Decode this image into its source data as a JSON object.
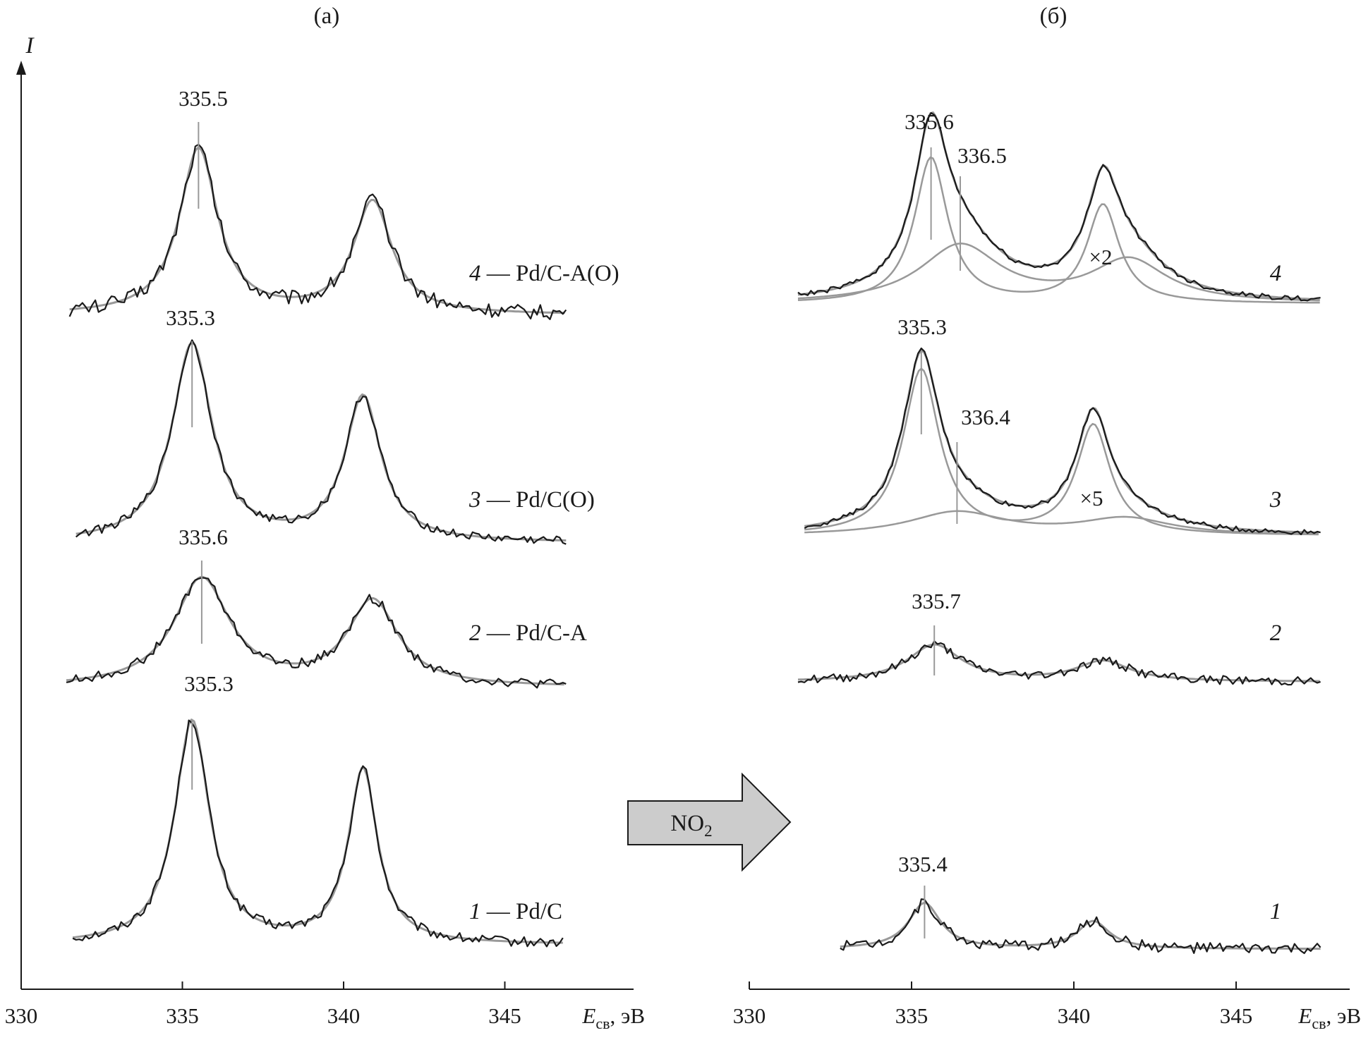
{
  "chart_data": [
    {
      "type": "line",
      "panel_label": "(а)",
      "y_axis_label": "I",
      "xlabel_main": "E",
      "xlabel_sub": "св",
      "xlabel_unit": ", эВ",
      "xlim": [
        330,
        349
      ],
      "ticks": [
        "330",
        "335",
        "340",
        "345"
      ],
      "series": [
        {
          "id": "1",
          "name": "Pd/C",
          "label_num": "1",
          "label_text": " — Pd/C",
          "peak_label": "335.3",
          "peaks": [
            {
              "c": 335.3,
              "h": 1.0,
              "w": 0.65
            },
            {
              "c": 340.6,
              "h": 0.78,
              "w": 0.55
            }
          ]
        },
        {
          "id": "2",
          "name": "Pd/C-A",
          "label_num": "2",
          "label_text": " — Pd/C-A",
          "peak_label": "335.6",
          "peaks": [
            {
              "c": 335.6,
              "h": 1.0,
              "w": 1.05
            },
            {
              "c": 340.9,
              "h": 0.79,
              "w": 0.95
            }
          ]
        },
        {
          "id": "3",
          "name": "Pd/C(O)",
          "label_num": "3",
          "label_text": " — Pd/C(O)",
          "peak_label": "335.3",
          "peaks": [
            {
              "c": 335.3,
              "h": 1.0,
              "w": 0.75
            },
            {
              "c": 340.6,
              "h": 0.73,
              "w": 0.68
            }
          ]
        },
        {
          "id": "4",
          "name": "Pd/C-A(O)",
          "label_num": "4",
          "label_text": " — Pd/C-A(O)",
          "peak_label": "335.5",
          "peaks": [
            {
              "c": 335.5,
              "h": 1.0,
              "w": 0.72
            },
            {
              "c": 340.9,
              "h": 0.68,
              "w": 0.72
            }
          ]
        }
      ]
    },
    {
      "type": "line",
      "panel_label": "(б)",
      "xlabel_main": "E",
      "xlabel_sub": "св",
      "xlabel_unit": ", эВ",
      "xlim": [
        330,
        348.5
      ],
      "ticks": [
        "330",
        "335",
        "340",
        "345"
      ],
      "series": [
        {
          "id": "1",
          "label_num": "1",
          "peak_labels": [
            "335.4"
          ],
          "peaks": [
            {
              "c": 335.4,
              "h": 1.0,
              "w": 0.6
            },
            {
              "c": 340.6,
              "h": 0.6,
              "w": 0.6
            }
          ]
        },
        {
          "id": "2",
          "label_num": "2",
          "peak_labels": [
            "335.7"
          ],
          "peaks": [
            {
              "c": 335.7,
              "h": 1.0,
              "w": 1.0
            },
            {
              "c": 340.9,
              "h": 0.55,
              "w": 1.0
            }
          ]
        },
        {
          "id": "3",
          "label_num": "3",
          "peak_labels": [
            "335.3",
            "336.4"
          ],
          "multiplier": "×5",
          "components": [
            [
              {
                "c": 335.3,
                "h": 1.0,
                "w": 0.68
              },
              {
                "c": 340.6,
                "h": 0.66,
                "w": 0.63
              }
            ],
            [
              {
                "c": 336.4,
                "h": 0.14,
                "w": 1.8
              },
              {
                "c": 341.6,
                "h": 0.1,
                "w": 1.7
              }
            ]
          ]
        },
        {
          "id": "4",
          "label_num": "4",
          "peak_labels": [
            "335.6",
            "336.5"
          ],
          "multiplier": "×2",
          "components": [
            [
              {
                "c": 335.6,
                "h": 0.86,
                "w": 0.62
              },
              {
                "c": 340.9,
                "h": 0.58,
                "w": 0.6
              }
            ],
            [
              {
                "c": 336.5,
                "h": 0.34,
                "w": 1.5
              },
              {
                "c": 341.7,
                "h": 0.25,
                "w": 1.4
              }
            ]
          ]
        }
      ]
    }
  ],
  "arrow": {
    "label": "NO",
    "sub": "2",
    "fill": "#cccccc"
  },
  "colors": {
    "measured": "#1a1a1a",
    "fit": "#999999",
    "axis": "#1a1a1a"
  }
}
